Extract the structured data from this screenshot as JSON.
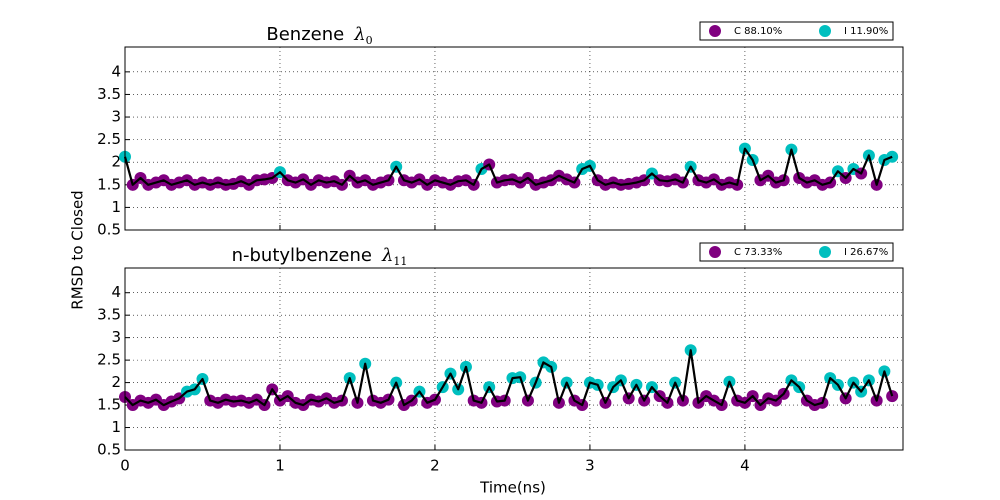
{
  "shared": {
    "xlabel": "Time(ns)",
    "ylabel": "RMSD to Closed"
  },
  "chart_data": [
    {
      "type": "line",
      "title": "Benzene",
      "title_symbol": "λ",
      "title_subscript": "0",
      "legend": [
        {
          "name": "C 88.10%",
          "color": "#800080"
        },
        {
          "name": "I 11.90%",
          "color": "#00bfbf"
        }
      ],
      "line_color": "#000000",
      "xlim": [
        0,
        5.02
      ],
      "ylim": [
        0.5,
        4.55
      ],
      "xticks": [
        0,
        1,
        2,
        3,
        4
      ],
      "xticklabels": false,
      "yticks": [
        0.5,
        1.0,
        1.5,
        2.0,
        2.5,
        3.0,
        3.5,
        4.0
      ],
      "grid": true,
      "x": [
        0,
        0.05,
        0.1,
        0.15,
        0.2,
        0.25,
        0.3,
        0.35,
        0.4,
        0.45,
        0.5,
        0.55,
        0.6,
        0.65,
        0.7,
        0.75,
        0.8,
        0.85,
        0.9,
        0.95,
        1.0,
        1.05,
        1.1,
        1.15,
        1.2,
        1.25,
        1.3,
        1.35,
        1.4,
        1.45,
        1.5,
        1.55,
        1.6,
        1.65,
        1.7,
        1.75,
        1.8,
        1.85,
        1.9,
        1.95,
        2.0,
        2.05,
        2.1,
        2.15,
        2.2,
        2.25,
        2.3,
        2.35,
        2.4,
        2.45,
        2.5,
        2.55,
        2.6,
        2.65,
        2.7,
        2.75,
        2.8,
        2.85,
        2.9,
        2.95,
        3.0,
        3.05,
        3.1,
        3.15,
        3.2,
        3.25,
        3.3,
        3.35,
        3.4,
        3.45,
        3.5,
        3.55,
        3.6,
        3.65,
        3.7,
        3.75,
        3.8,
        3.85,
        3.9,
        3.95,
        4.0,
        4.05,
        4.1,
        4.15,
        4.2,
        4.25,
        4.3,
        4.35,
        4.4,
        4.45,
        4.5,
        4.55,
        4.6,
        4.65,
        4.7,
        4.75,
        4.8,
        4.85,
        4.9,
        4.95
      ],
      "values": [
        2.12,
        1.5,
        1.65,
        1.5,
        1.55,
        1.6,
        1.5,
        1.55,
        1.6,
        1.5,
        1.55,
        1.5,
        1.55,
        1.5,
        1.52,
        1.58,
        1.5,
        1.6,
        1.62,
        1.65,
        1.78,
        1.6,
        1.55,
        1.62,
        1.5,
        1.6,
        1.55,
        1.58,
        1.5,
        1.7,
        1.55,
        1.6,
        1.5,
        1.55,
        1.6,
        1.9,
        1.6,
        1.55,
        1.62,
        1.5,
        1.6,
        1.55,
        1.5,
        1.58,
        1.6,
        1.5,
        1.85,
        1.95,
        1.55,
        1.6,
        1.62,
        1.55,
        1.65,
        1.5,
        1.55,
        1.6,
        1.7,
        1.62,
        1.55,
        1.85,
        1.92,
        1.6,
        1.5,
        1.55,
        1.5,
        1.52,
        1.55,
        1.6,
        1.75,
        1.6,
        1.58,
        1.62,
        1.55,
        1.9,
        1.6,
        1.55,
        1.62,
        1.5,
        1.55,
        1.5,
        2.3,
        2.05,
        1.6,
        1.7,
        1.55,
        1.6,
        2.28,
        1.65,
        1.55,
        1.6,
        1.5,
        1.55,
        1.8,
        1.65,
        1.85,
        1.75,
        2.15,
        1.5,
        2.05,
        2.12
      ],
      "states": [
        1,
        0,
        0,
        0,
        0,
        0,
        0,
        0,
        0,
        0,
        0,
        0,
        0,
        0,
        0,
        0,
        0,
        0,
        0,
        0,
        1,
        0,
        0,
        0,
        0,
        0,
        0,
        0,
        0,
        0,
        0,
        0,
        0,
        0,
        0,
        1,
        0,
        0,
        0,
        0,
        0,
        0,
        0,
        0,
        0,
        0,
        1,
        0,
        0,
        0,
        0,
        0,
        0,
        0,
        0,
        0,
        0,
        0,
        0,
        1,
        1,
        0,
        0,
        0,
        0,
        0,
        0,
        0,
        1,
        0,
        0,
        0,
        0,
        1,
        0,
        0,
        0,
        0,
        0,
        0,
        1,
        1,
        0,
        0,
        0,
        0,
        1,
        0,
        0,
        0,
        0,
        0,
        1,
        0,
        1,
        0,
        1,
        0,
        1,
        1
      ]
    },
    {
      "type": "line",
      "title": "n-butylbenzene",
      "title_symbol": "λ",
      "title_subscript": "11",
      "legend": [
        {
          "name": "C 73.33%",
          "color": "#800080"
        },
        {
          "name": "I 26.67%",
          "color": "#00bfbf"
        }
      ],
      "line_color": "#000000",
      "xlim": [
        0,
        5.02
      ],
      "ylim": [
        0.5,
        4.55
      ],
      "xticks": [
        0,
        1,
        2,
        3,
        4
      ],
      "xticklabels": true,
      "yticks": [
        0.5,
        1.0,
        1.5,
        2.0,
        2.5,
        3.0,
        3.5,
        4.0
      ],
      "grid": true,
      "x": [
        0,
        0.05,
        0.1,
        0.15,
        0.2,
        0.25,
        0.3,
        0.35,
        0.4,
        0.45,
        0.5,
        0.55,
        0.6,
        0.65,
        0.7,
        0.75,
        0.8,
        0.85,
        0.9,
        0.95,
        1.0,
        1.05,
        1.1,
        1.15,
        1.2,
        1.25,
        1.3,
        1.35,
        1.4,
        1.45,
        1.5,
        1.55,
        1.6,
        1.65,
        1.7,
        1.75,
        1.8,
        1.85,
        1.9,
        1.95,
        2.0,
        2.05,
        2.1,
        2.15,
        2.2,
        2.25,
        2.3,
        2.35,
        2.4,
        2.45,
        2.5,
        2.55,
        2.6,
        2.65,
        2.7,
        2.75,
        2.8,
        2.85,
        2.9,
        2.95,
        3.0,
        3.05,
        3.1,
        3.15,
        3.2,
        3.25,
        3.3,
        3.35,
        3.4,
        3.45,
        3.5,
        3.55,
        3.6,
        3.65,
        3.7,
        3.75,
        3.8,
        3.85,
        3.9,
        3.95,
        4.0,
        4.05,
        4.1,
        4.15,
        4.2,
        4.25,
        4.3,
        4.35,
        4.4,
        4.45,
        4.5,
        4.55,
        4.6,
        4.65,
        4.7,
        4.75,
        4.8,
        4.85,
        4.9,
        4.95
      ],
      "values": [
        1.68,
        1.5,
        1.6,
        1.55,
        1.62,
        1.5,
        1.58,
        1.65,
        1.8,
        1.85,
        2.08,
        1.6,
        1.55,
        1.62,
        1.58,
        1.6,
        1.55,
        1.62,
        1.5,
        1.85,
        1.6,
        1.7,
        1.55,
        1.5,
        1.62,
        1.58,
        1.65,
        1.55,
        1.6,
        2.1,
        1.55,
        2.42,
        1.6,
        1.55,
        1.62,
        2.0,
        1.5,
        1.6,
        1.8,
        1.55,
        1.62,
        1.9,
        2.2,
        1.85,
        2.35,
        1.6,
        1.55,
        1.9,
        1.58,
        1.6,
        2.1,
        2.12,
        1.6,
        2.0,
        2.45,
        2.35,
        1.55,
        2.0,
        1.6,
        1.5,
        2.0,
        1.95,
        1.55,
        1.9,
        2.05,
        1.65,
        1.95,
        1.6,
        1.9,
        1.7,
        1.55,
        2.0,
        1.6,
        2.72,
        1.55,
        1.7,
        1.6,
        1.5,
        2.02,
        1.6,
        1.55,
        1.7,
        1.5,
        1.65,
        1.6,
        1.75,
        2.05,
        1.9,
        1.6,
        1.5,
        1.55,
        2.1,
        1.95,
        1.65,
        2.0,
        1.8,
        2.05,
        1.6,
        2.25,
        1.7
      ],
      "states": [
        0,
        0,
        0,
        0,
        0,
        0,
        0,
        0,
        1,
        1,
        1,
        0,
        0,
        0,
        0,
        0,
        0,
        0,
        0,
        0,
        0,
        0,
        0,
        0,
        0,
        0,
        0,
        0,
        0,
        1,
        0,
        1,
        0,
        0,
        0,
        1,
        0,
        0,
        1,
        0,
        0,
        1,
        1,
        1,
        1,
        0,
        0,
        1,
        0,
        0,
        1,
        1,
        0,
        1,
        1,
        1,
        0,
        1,
        0,
        0,
        1,
        1,
        0,
        1,
        1,
        0,
        1,
        0,
        1,
        0,
        0,
        1,
        0,
        1,
        0,
        0,
        0,
        0,
        1,
        0,
        0,
        0,
        0,
        0,
        0,
        0,
        1,
        1,
        0,
        0,
        0,
        1,
        1,
        0,
        1,
        1,
        1,
        0,
        1,
        0
      ]
    }
  ]
}
